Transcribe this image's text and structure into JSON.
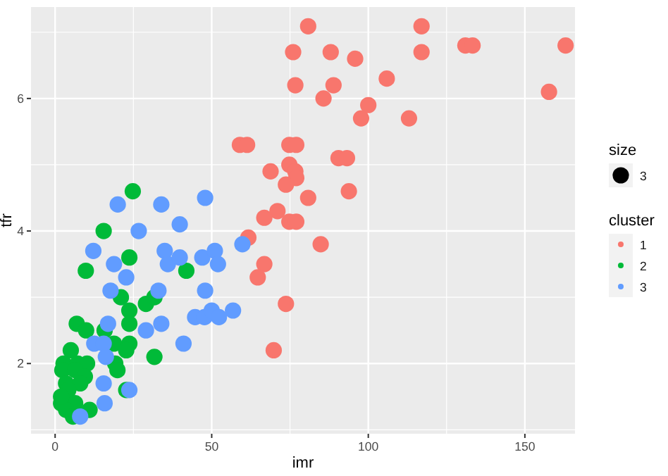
{
  "chart_data": {
    "type": "bubble",
    "xlabel": "imr",
    "ylabel": "tfr",
    "legend_title": "cluster",
    "legend": "right",
    "grid": true,
    "marker": "circle",
    "size_legend": [
      3
    ],
    "annotations": [
      "size"
    ],
    "xlim": [
      -7.7,
      166
    ],
    "ylim": [
      0.94,
      7.38
    ],
    "xticks": [
      0,
      50,
      100,
      150
    ],
    "yticks": [
      2,
      4,
      6
    ],
    "series": [
      {
        "name": "1",
        "color": "#f8766d",
        "x": [
          80.8,
          117,
          76,
          88,
          117,
          95.8,
          131,
          133.3,
          163,
          76.7,
          88.9,
          105.9,
          157.7,
          85.7,
          100,
          97.7,
          113,
          59,
          61.3,
          74.8,
          77,
          90.5,
          93.2,
          74.8,
          68.8,
          76.7,
          77,
          73.7,
          93.8,
          80.8,
          71,
          66.8,
          74.8,
          77,
          61.7,
          84.8,
          66.8,
          64.7,
          73.7,
          69.8
        ],
        "values": [
          7.09,
          7.09,
          6.7,
          6.7,
          6.7,
          6.6,
          6.8,
          6.8,
          6.8,
          6.2,
          6.2,
          6.3,
          6.1,
          6.0,
          5.9,
          5.7,
          5.7,
          5.3,
          5.3,
          5.3,
          5.3,
          5.1,
          5.1,
          5.0,
          4.9,
          4.9,
          4.8,
          4.7,
          4.6,
          4.5,
          4.3,
          4.2,
          4.14,
          4.14,
          3.9,
          3.8,
          3.5,
          3.3,
          2.9,
          2.2
        ],
        "sizes": [
          3,
          3,
          3,
          3,
          3,
          3,
          3,
          3,
          3,
          3,
          3,
          3,
          3,
          3,
          3,
          3,
          3,
          3,
          3,
          3,
          3,
          3,
          3,
          3,
          3,
          3,
          3,
          3,
          3,
          3,
          3,
          3,
          3,
          3,
          3,
          3,
          3,
          3,
          3,
          3
        ]
      },
      {
        "name": "2",
        "color": "#00ba38",
        "x": [
          24.8,
          15.5,
          23.7,
          9.8,
          41.9,
          21,
          29,
          31.7,
          23.7,
          6.9,
          9.9,
          23.7,
          15.8,
          18.8,
          23.7,
          22.7,
          31.7,
          5,
          2.7,
          7.2,
          10.2,
          2.3,
          6.4,
          9.5,
          19.2,
          19.9,
          3.5,
          8,
          4.2,
          22.7,
          1.9,
          6.4,
          3.5,
          11,
          5.7,
          1.9
        ],
        "values": [
          4.6,
          4.0,
          3.6,
          3.4,
          3.4,
          3.0,
          2.9,
          3.0,
          2.8,
          2.6,
          2.5,
          2.6,
          2.5,
          2.3,
          2.3,
          2.2,
          2.1,
          2.2,
          2.0,
          2.0,
          2.0,
          1.9,
          1.9,
          1.8,
          2.0,
          1.9,
          1.7,
          1.7,
          1.6,
          1.6,
          1.4,
          1.4,
          1.3,
          1.3,
          1.2,
          1.5
        ],
        "sizes": [
          3,
          3,
          3,
          3,
          3,
          3,
          3,
          3,
          3,
          3,
          3,
          3,
          3,
          3,
          3,
          3,
          3,
          3,
          3,
          3,
          3,
          3,
          3,
          3,
          3,
          3,
          3,
          3,
          3,
          3,
          3,
          3,
          3,
          3,
          3,
          3
        ]
      },
      {
        "name": "3",
        "color": "#619cff",
        "x": [
          59.8,
          56.8,
          20,
          33.9,
          47.9,
          39.8,
          26.7,
          12.2,
          18.8,
          35,
          36,
          39.8,
          47,
          51,
          52,
          22.7,
          17.7,
          33,
          47.9,
          44.7,
          47.7,
          50,
          52.3,
          16.9,
          33.9,
          29,
          12.5,
          15.5,
          41,
          16.2,
          15.5,
          23.7,
          15.8,
          8
        ],
        "values": [
          3.8,
          2.8,
          4.4,
          4.4,
          4.5,
          4.1,
          4.0,
          3.7,
          3.5,
          3.7,
          3.5,
          3.6,
          3.6,
          3.7,
          3.5,
          3.3,
          3.1,
          3.1,
          3.1,
          2.7,
          2.7,
          2.8,
          2.7,
          2.6,
          2.6,
          2.5,
          2.3,
          2.3,
          2.3,
          2.1,
          1.7,
          1.6,
          1.4,
          1.2
        ],
        "sizes": [
          3,
          3,
          3,
          3,
          3,
          3,
          3,
          3,
          3,
          3,
          3,
          3,
          3,
          3,
          3,
          3,
          3,
          3,
          3,
          3,
          3,
          3,
          3,
          3,
          3,
          3,
          3,
          3,
          3,
          3,
          3,
          3,
          3,
          3
        ]
      }
    ]
  }
}
